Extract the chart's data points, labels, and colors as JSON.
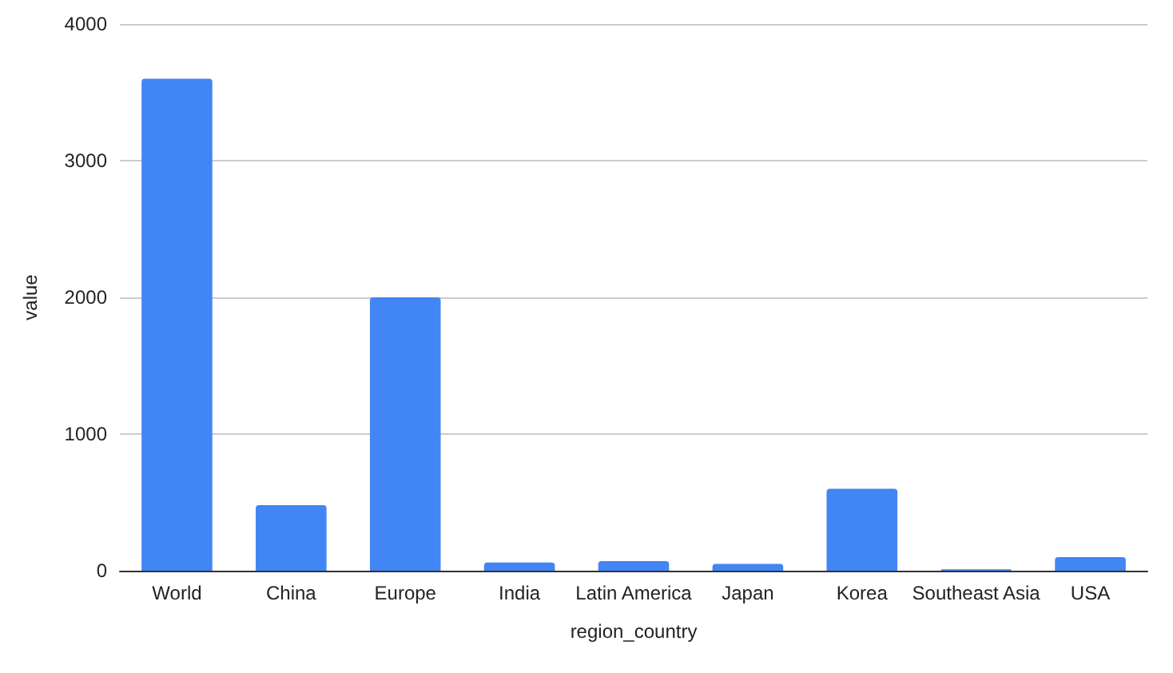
{
  "chart_data": {
    "type": "bar",
    "xlabel": "region_country",
    "ylabel": "value",
    "categories": [
      "World",
      "China",
      "Europe",
      "India",
      "Latin America",
      "Japan",
      "Korea",
      "Southeast Asia",
      "USA"
    ],
    "values": [
      3600,
      480,
      2000,
      60,
      70,
      50,
      600,
      10,
      100
    ],
    "color": "#4285f4",
    "ylim": [
      0,
      4000
    ],
    "yticks": [
      0,
      1000,
      2000,
      3000,
      4000
    ],
    "grid": "y"
  }
}
